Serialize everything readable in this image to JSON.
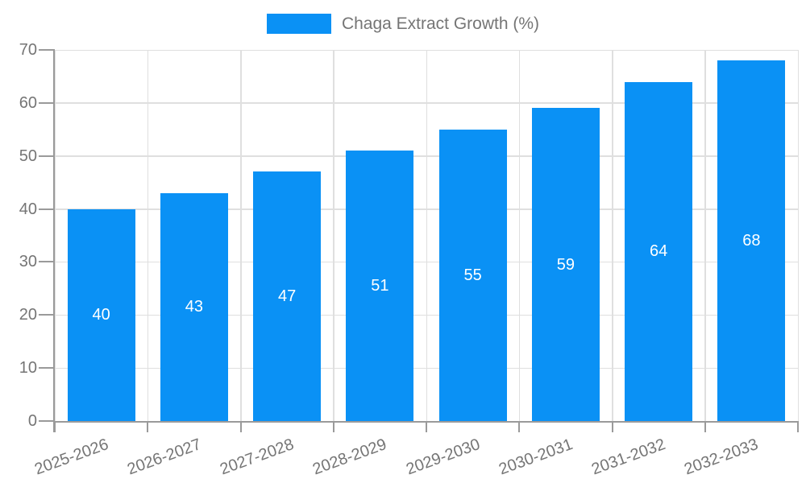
{
  "legend": {
    "label": "Chaga Extract Growth (%)"
  },
  "chart_data": {
    "type": "bar",
    "title": "",
    "series_name": "Chaga Extract Growth (%)",
    "categories": [
      "2025-2026",
      "2026-2027",
      "2027-2028",
      "2028-2029",
      "2029-2030",
      "2030-2031",
      "2031-2032",
      "2032-2033"
    ],
    "values": [
      40,
      43,
      47,
      51,
      55,
      59,
      64,
      68
    ],
    "value_labels_shown": true,
    "xlabel": "",
    "ylabel": "",
    "ylim": [
      0,
      70
    ],
    "yticks": [
      0,
      10,
      20,
      30,
      40,
      50,
      60,
      70
    ],
    "grid": true,
    "legend_position": "top",
    "x_label_rotation_deg": -20,
    "colors": {
      "bar": "#0A91F5",
      "grid": "#DFDFDF",
      "axis": "#9A9A9A",
      "tick_text": "#757575",
      "value_label": "#FFFFFF"
    }
  }
}
